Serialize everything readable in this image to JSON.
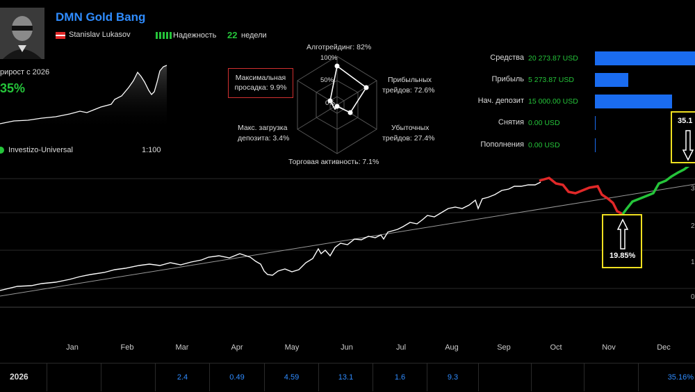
{
  "header": {
    "title": "DMN Gold Bang",
    "author": "Stanislav Lukasov",
    "reliability_label": "Надежность",
    "weeks_value": "22",
    "weeks_label": "недели",
    "growth_label": "рирост с 2026",
    "growth_value": "35%",
    "broker": "Investizo-Universal",
    "leverage": "1:100"
  },
  "radar": {
    "algo": "Алготрейдинг: 82%",
    "profit_line1": "Прибыльных",
    "profit_line2": "трейдов: 72.6%",
    "loss_line1": "Убыточных",
    "loss_line2": "трейдов: 27.4%",
    "activity": "Торговая активность: 7.1%",
    "load_line1": "Макс. загрузка",
    "load_line2": "депозита: 3.4%",
    "maxdd_line1": "Максимальная",
    "maxdd_line2": "просадка: 9.9%",
    "ring_100": "100%",
    "ring_50": "50%",
    "ring_0": "0%"
  },
  "stats": [
    {
      "label": "Средства",
      "value": "20 273.87 USD",
      "fraction": 1.0
    },
    {
      "label": "Прибыль",
      "value": "5 273.87 USD",
      "fraction": 0.33
    },
    {
      "label": "Нач. депозит",
      "value": "15 000.00 USD",
      "fraction": 0.77
    },
    {
      "label": "Снятия",
      "value": "0.00 USD",
      "fraction": 0
    },
    {
      "label": "Пополнения",
      "value": "0.00 USD",
      "fraction": 0
    }
  ],
  "months": [
    "Jan",
    "Feb",
    "Mar",
    "Apr",
    "May",
    "Jun",
    "Jul",
    "Aug",
    "Sep",
    "Oct",
    "Nov",
    "Dec"
  ],
  "yearly": {
    "year": "2026",
    "values": [
      "",
      "",
      "2.4",
      "0.49",
      "4.59",
      "13.1",
      "1.6",
      "9.3",
      "",
      "",
      "",
      "35.16%"
    ]
  },
  "callouts": {
    "dip": "19.85%",
    "peak": "35.1"
  },
  "axis_labels": [
    "3",
    "2",
    "1",
    "0"
  ],
  "colors": {
    "accent": "#2f8cff",
    "positive": "#25c43a",
    "negative": "#e02828",
    "callout": "#f0e020",
    "bar": "#1a6cf0"
  }
}
